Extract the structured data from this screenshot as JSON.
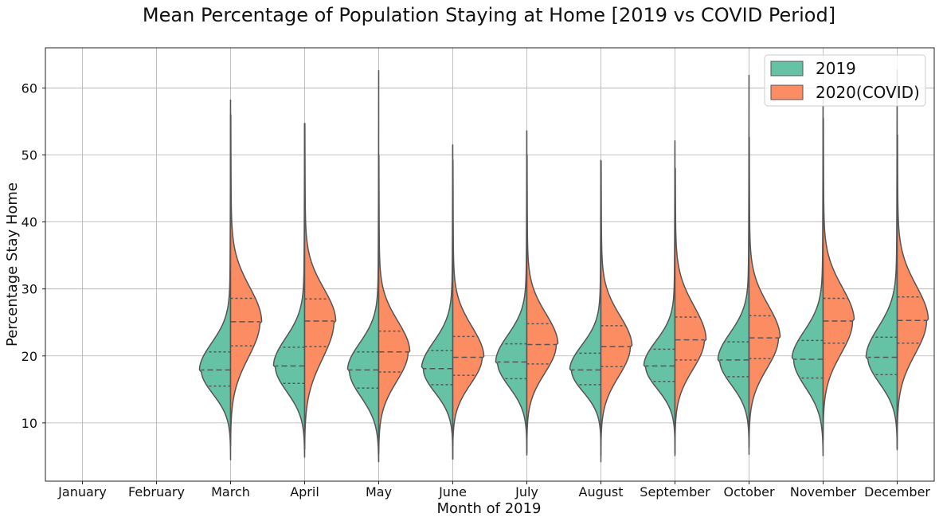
{
  "colors": {
    "series_2019": "#66c2a5",
    "series_2020": "#fc8d62",
    "outline": "#555555",
    "grid": "#b0b0b0"
  },
  "chart_data": {
    "type": "violin",
    "title": "Mean Percentage of Population Staying at Home [2019 vs COVID Period]",
    "xlabel": "Month of 2019",
    "ylabel": "Percentage Stay Home",
    "ylim": [
      1.3,
      66
    ],
    "yticks": [
      10,
      20,
      30,
      40,
      50,
      60
    ],
    "grid": true,
    "legend_position": "top-right",
    "categories": [
      "January",
      "February",
      "March",
      "April",
      "May",
      "June",
      "July",
      "August",
      "September",
      "October",
      "November",
      "December"
    ],
    "series": [
      {
        "name": "2019",
        "side": "left",
        "violins": [
          null,
          null,
          {
            "min": 4.5,
            "max": 58.2,
            "q1": 15.5,
            "median": 17.9,
            "q3": 20.6
          },
          {
            "min": 4.9,
            "max": 54.7,
            "q1": 15.9,
            "median": 18.5,
            "q3": 21.3
          },
          {
            "min": 4.2,
            "max": 62.6,
            "q1": 15.2,
            "median": 17.9,
            "q3": 20.6
          },
          {
            "min": 4.6,
            "max": 51.5,
            "q1": 15.7,
            "median": 18.1,
            "q3": 20.8
          },
          {
            "min": 5.2,
            "max": 53.6,
            "q1": 16.6,
            "median": 19.1,
            "q3": 21.8
          },
          {
            "min": 5.1,
            "max": 49.2,
            "q1": 15.7,
            "median": 17.9,
            "q3": 20.4
          },
          {
            "min": 5.1,
            "max": 52.1,
            "q1": 16.2,
            "median": 18.5,
            "q3": 21.0
          },
          {
            "min": 5.3,
            "max": 61.9,
            "q1": 16.9,
            "median": 19.4,
            "q3": 22.1
          },
          {
            "min": 5.1,
            "max": 58.5,
            "q1": 16.7,
            "median": 19.5,
            "q3": 22.3
          },
          {
            "min": 6.0,
            "max": 62.7,
            "q1": 17.2,
            "median": 19.8,
            "q3": 22.8
          }
        ]
      },
      {
        "name": "2020(COVID)",
        "side": "right",
        "violins": [
          null,
          null,
          {
            "min": 6.6,
            "max": 56.0,
            "q1": 21.5,
            "median": 25.1,
            "q3": 28.6
          },
          {
            "min": 6.1,
            "max": 54.7,
            "q1": 21.4,
            "median": 25.2,
            "q3": 28.5
          },
          {
            "min": 5.4,
            "max": 50.0,
            "q1": 17.6,
            "median": 20.6,
            "q3": 23.7
          },
          {
            "min": 4.6,
            "max": 49.2,
            "q1": 17.1,
            "median": 19.8,
            "q3": 22.9
          },
          {
            "min": 5.5,
            "max": 50.0,
            "q1": 18.8,
            "median": 21.7,
            "q3": 24.8
          },
          {
            "min": 4.2,
            "max": 49.1,
            "q1": 18.4,
            "median": 21.4,
            "q3": 24.5
          },
          {
            "min": 5.4,
            "max": 48.0,
            "q1": 19.4,
            "median": 22.4,
            "q3": 25.8
          },
          {
            "min": 6.4,
            "max": 52.6,
            "q1": 19.6,
            "median": 22.7,
            "q3": 26.0
          },
          {
            "min": 7.5,
            "max": 55.5,
            "q1": 21.9,
            "median": 25.2,
            "q3": 28.6
          },
          {
            "min": 6.2,
            "max": 53.0,
            "q1": 21.9,
            "median": 25.3,
            "q3": 28.8
          }
        ]
      }
    ]
  }
}
